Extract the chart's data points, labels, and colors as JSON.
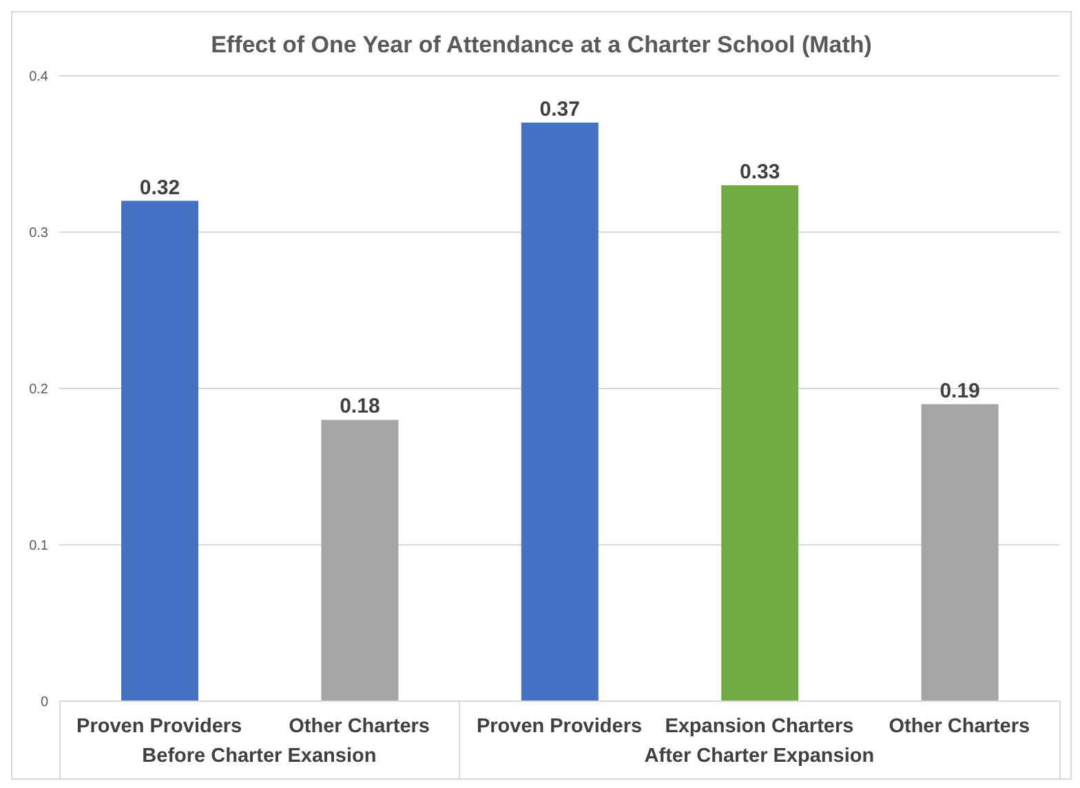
{
  "chart_data": {
    "type": "bar",
    "title": "Effect of One Year of Attendance at a Charter School (Math)",
    "categories": [
      "Proven Providers",
      "Other Charters",
      "Proven Providers",
      "Expansion Charters",
      "Other Charters"
    ],
    "values": [
      0.32,
      0.18,
      0.37,
      0.33,
      0.19
    ],
    "colors": [
      "#4472c4",
      "#a5a5a5",
      "#4472c4",
      "#70ad47",
      "#a5a5a5"
    ],
    "ylim": [
      0,
      0.4
    ],
    "yticks": [
      0,
      0.1,
      0.2,
      0.3,
      0.4
    ],
    "grid": "y",
    "data_labels": true,
    "annotations": [
      "Before Charter Exansion",
      "After Charter Expansion"
    ]
  }
}
